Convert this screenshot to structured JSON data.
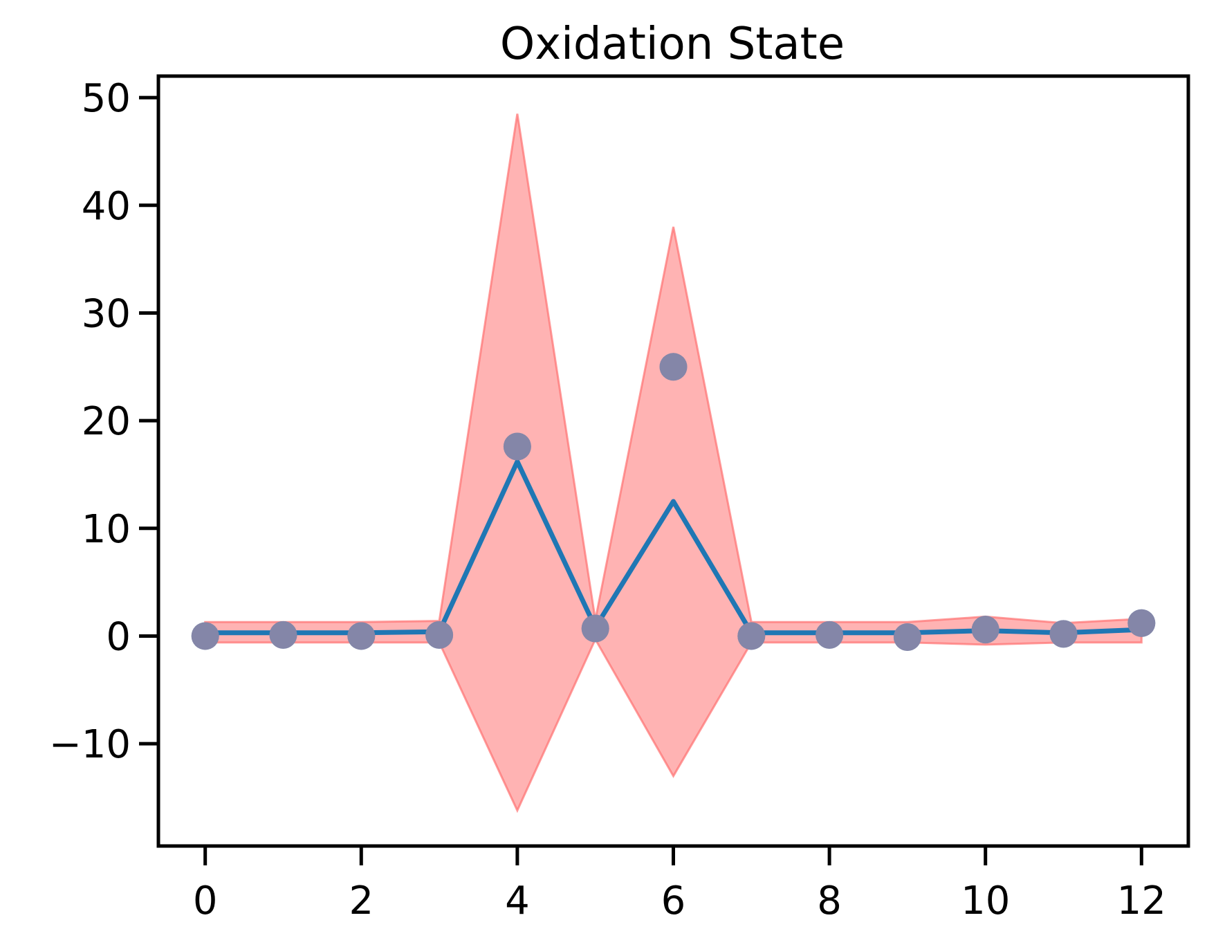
{
  "chart_data": {
    "type": "line",
    "title": "Oxidation State",
    "xlabel": "",
    "ylabel": "",
    "xlim": [
      -0.6,
      12.6
    ],
    "ylim": [
      -19.5,
      52
    ],
    "x_ticks": [
      0,
      2,
      4,
      6,
      8,
      10,
      12
    ],
    "y_ticks": [
      -10,
      0,
      10,
      20,
      30,
      40,
      50
    ],
    "y_tick_labels": [
      "−10",
      "0",
      "10",
      "20",
      "30",
      "40",
      "50"
    ],
    "x_tick_labels": [
      "0",
      "2",
      "4",
      "6",
      "8",
      "10",
      "12"
    ],
    "grid": false,
    "series": [
      {
        "kind": "band",
        "x": [
          0,
          1,
          2,
          3,
          4,
          5,
          6,
          7,
          8,
          9,
          10,
          11,
          12
        ],
        "lower": [
          -0.6,
          -0.6,
          -0.6,
          -0.6,
          -16.2,
          -0.3,
          -13.0,
          -0.6,
          -0.6,
          -0.6,
          -0.8,
          -0.6,
          -0.6
        ],
        "upper": [
          1.3,
          1.3,
          1.3,
          1.4,
          48.5,
          1.5,
          38.0,
          1.3,
          1.3,
          1.3,
          1.8,
          1.2,
          1.6
        ],
        "color": "#ff9a9a"
      },
      {
        "kind": "line",
        "x": [
          0,
          1,
          2,
          3,
          4,
          5,
          6,
          7,
          8,
          9,
          10,
          11,
          12
        ],
        "values": [
          0.3,
          0.3,
          0.3,
          0.4,
          16.2,
          0.8,
          12.5,
          0.3,
          0.3,
          0.3,
          0.5,
          0.3,
          0.6
        ],
        "color": "#1f77b4"
      },
      {
        "kind": "scatter",
        "x": [
          0,
          1,
          2,
          3,
          4,
          5,
          6,
          7,
          8,
          9,
          10,
          11,
          12
        ],
        "values": [
          0.0,
          0.1,
          0.0,
          0.1,
          17.6,
          0.7,
          25.0,
          0.0,
          0.1,
          -0.1,
          0.6,
          0.2,
          1.2
        ],
        "color": "#1f77b4"
      }
    ]
  }
}
